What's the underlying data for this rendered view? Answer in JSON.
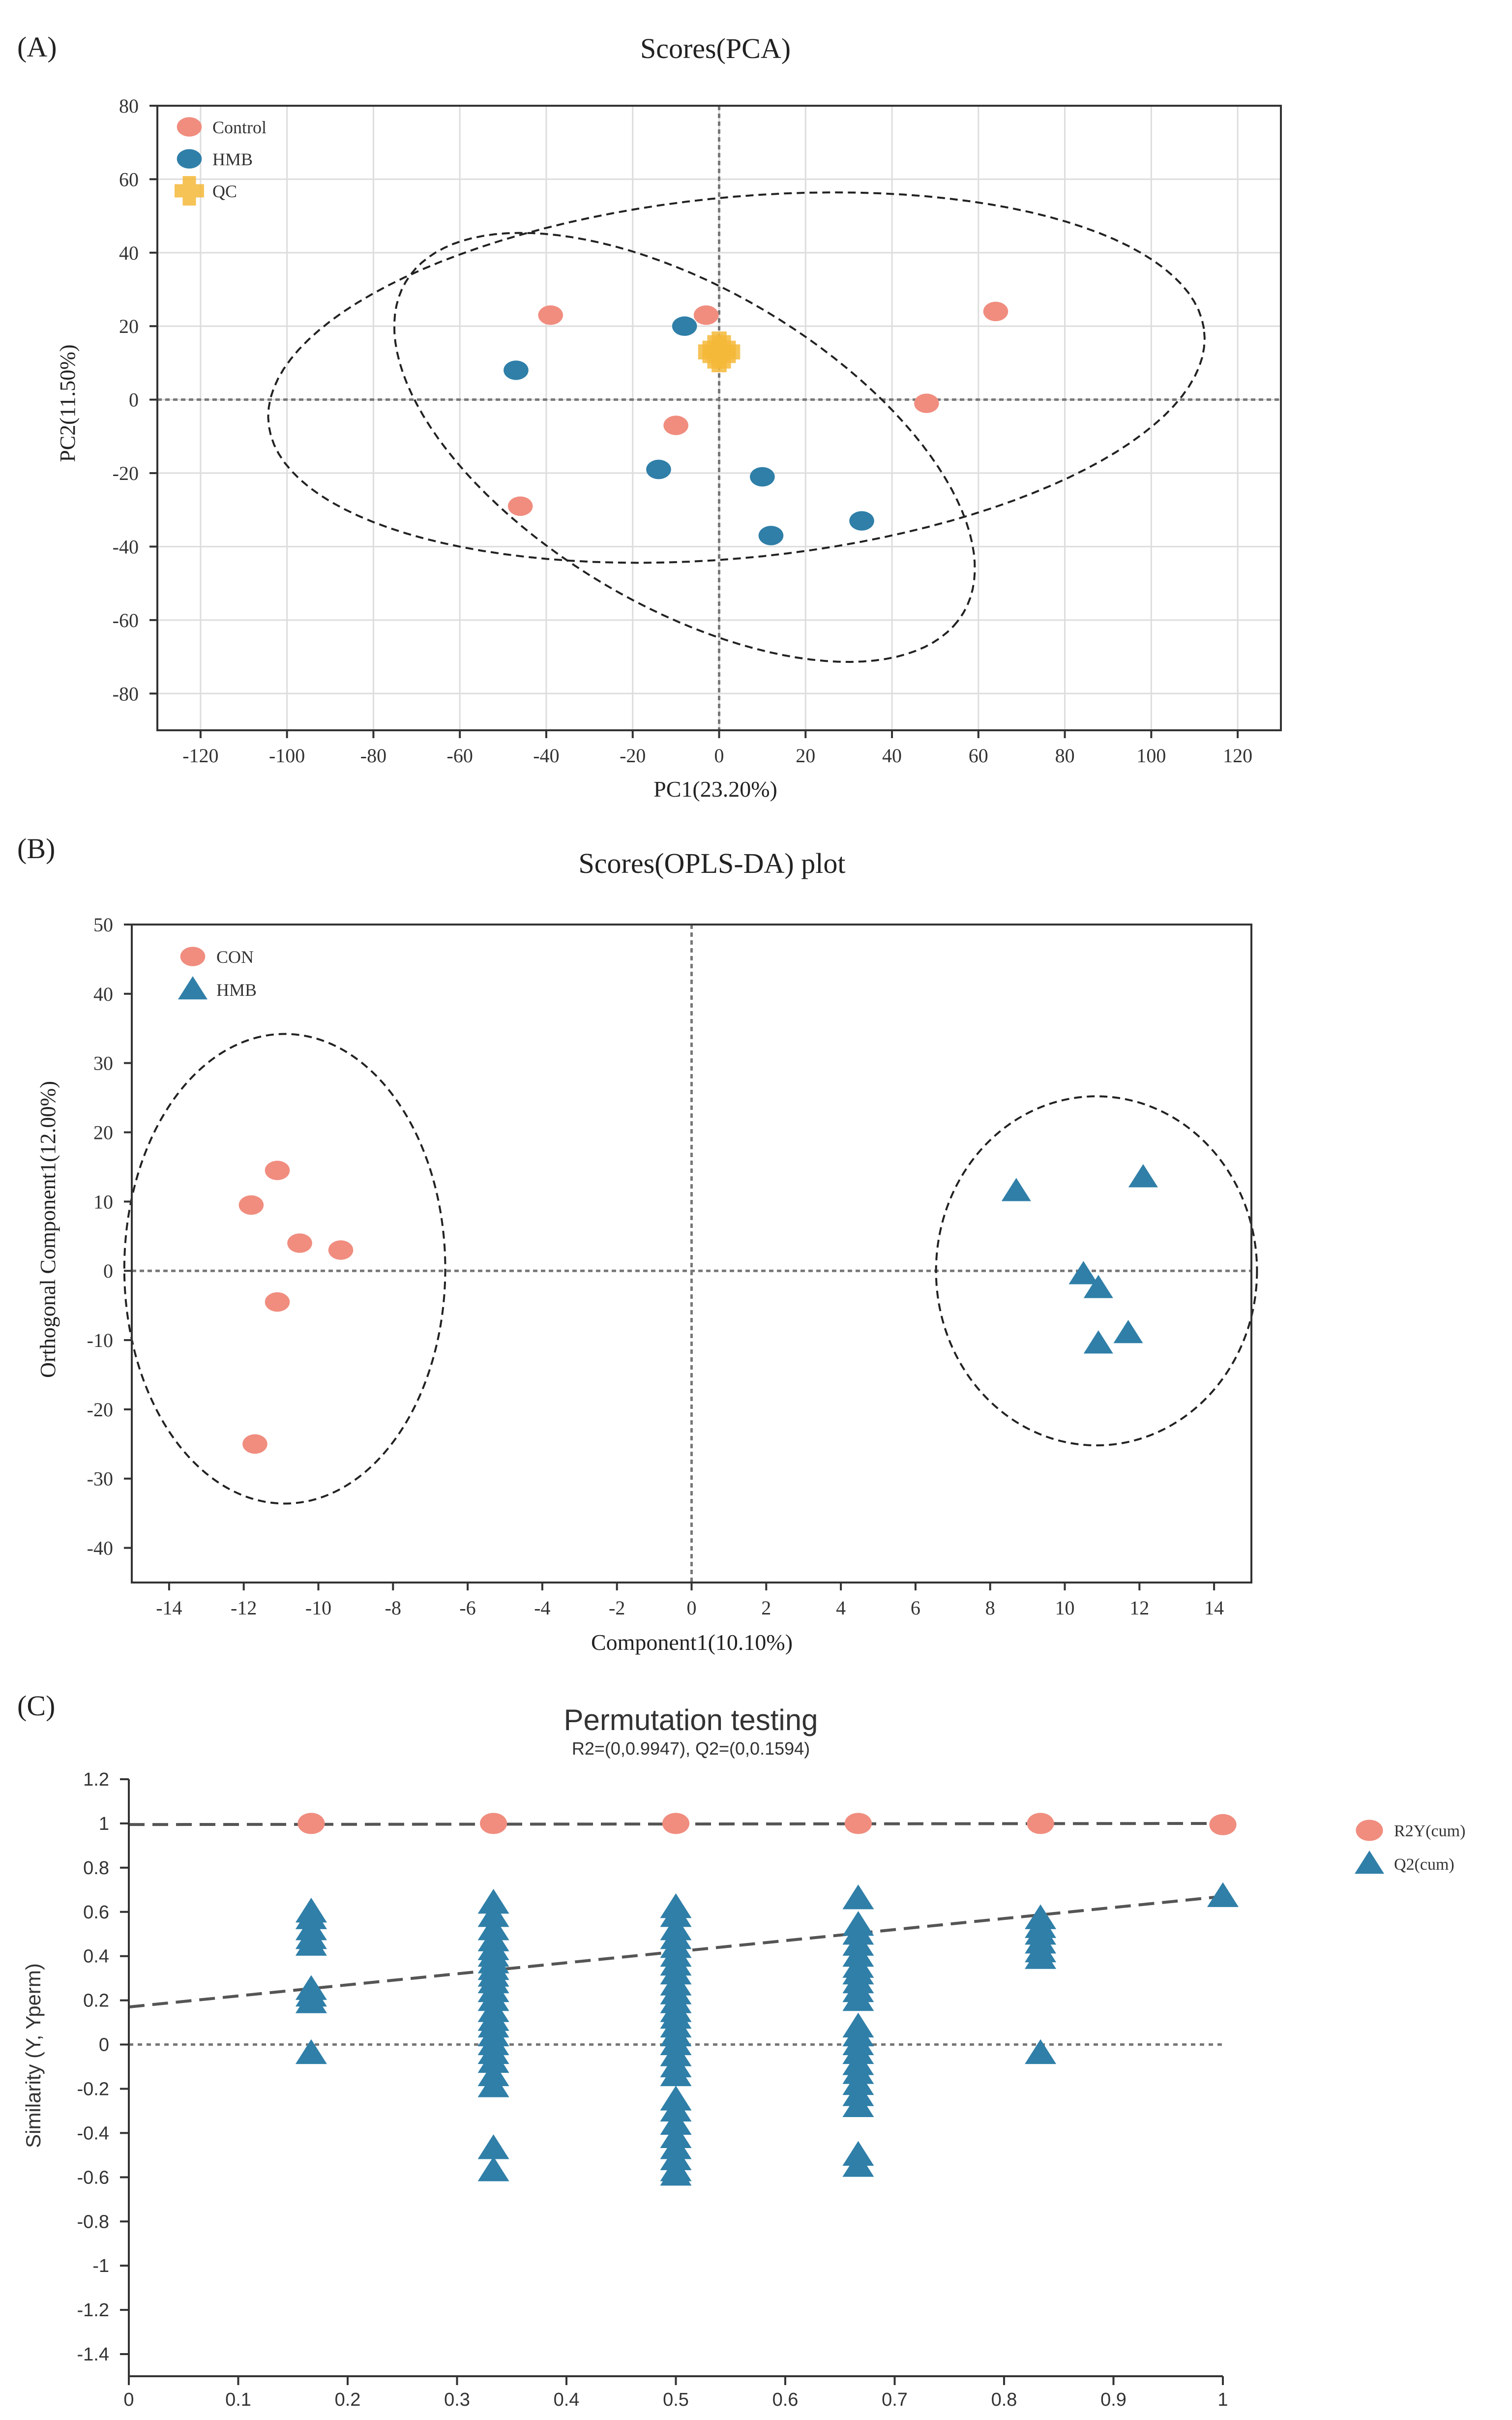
{
  "colors": {
    "control": "#f08d7f",
    "hmb": "#2f7fa8",
    "qc": "#f5b93a",
    "axis": "#333333",
    "grid": "#dddddd",
    "guide": "#777777",
    "ellipse": "#222222"
  },
  "chart_data": [
    {
      "panel_label": "(A)",
      "type": "scatter",
      "title": "Scores(PCA)",
      "xlabel": "PC1(23.20%)",
      "ylabel": "PC2(11.50%)",
      "xlim": [
        -130,
        130
      ],
      "ylim": [
        -90,
        80
      ],
      "xticks": [
        -120,
        -100,
        -80,
        -60,
        -40,
        -20,
        0,
        20,
        40,
        60,
        80,
        100,
        120
      ],
      "yticks": [
        -80,
        -60,
        -40,
        -20,
        0,
        20,
        40,
        60,
        80
      ],
      "grid": true,
      "legend_position": "top-left",
      "series": [
        {
          "name": "Control",
          "marker": "circle",
          "color": "#f08d7f",
          "points": [
            [
              -39,
              23
            ],
            [
              -3,
              23
            ],
            [
              -10,
              -7
            ],
            [
              -46,
              -29
            ],
            [
              48,
              -1
            ],
            [
              64,
              24
            ]
          ]
        },
        {
          "name": "HMB",
          "marker": "circle",
          "color": "#2f7fa8",
          "points": [
            [
              -47,
              8
            ],
            [
              -8,
              20
            ],
            [
              -14,
              -19
            ],
            [
              10,
              -21
            ],
            [
              12,
              -37
            ],
            [
              33,
              -33
            ]
          ]
        },
        {
          "name": "QC",
          "marker": "cross",
          "color": "#f5b93a",
          "points": [
            [
              -1,
              13
            ],
            [
              0,
              12
            ],
            [
              1,
              13
            ],
            [
              0,
              14
            ]
          ]
        }
      ],
      "ellipses": [
        {
          "group": "Control",
          "cx": 4,
          "cy": 6,
          "rx": 109,
          "ry": 49,
          "angle_deg": 7
        },
        {
          "group": "HMB",
          "cx": -8,
          "cy": -13,
          "rx": 79,
          "ry": 41,
          "angle_deg": -38
        }
      ]
    },
    {
      "panel_label": "(B)",
      "type": "scatter",
      "title": "Scores(OPLS-DA) plot",
      "xlabel": "Component1(10.10%)",
      "ylabel": "Orthogonal Component1(12.00%)",
      "xlim": [
        -15,
        15
      ],
      "ylim": [
        -45,
        50
      ],
      "xticks": [
        -14,
        -12,
        -10,
        -8,
        -6,
        -4,
        -2,
        0,
        2,
        4,
        6,
        8,
        10,
        12,
        14
      ],
      "yticks": [
        -40,
        -30,
        -20,
        -10,
        0,
        10,
        20,
        30,
        40,
        50
      ],
      "grid": false,
      "legend_position": "top-left",
      "series": [
        {
          "name": "CON",
          "marker": "circle",
          "color": "#f08d7f",
          "points": [
            [
              -11.8,
              9.5
            ],
            [
              -11.1,
              14.5
            ],
            [
              -10.5,
              4
            ],
            [
              -9.4,
              3
            ],
            [
              -11.1,
              -4.5
            ],
            [
              -11.7,
              -25
            ]
          ]
        },
        {
          "name": "HMB",
          "marker": "triangle",
          "color": "#2f7fa8",
          "points": [
            [
              8.7,
              11.5
            ],
            [
              12.1,
              13.5
            ],
            [
              10.5,
              -0.5
            ],
            [
              10.9,
              -2.5
            ],
            [
              11.7,
              -9
            ],
            [
              10.9,
              -10.5
            ]
          ]
        }
      ],
      "ellipses": [
        {
          "group": "CON",
          "cx": -10.9,
          "cy": 0.3,
          "rx": 4.3,
          "ry": 33.9,
          "angle_deg": 0
        },
        {
          "group": "HMB",
          "cx": 10.85,
          "cy": 0,
          "rx": 4.3,
          "ry": 25.2,
          "angle_deg": 0
        }
      ]
    },
    {
      "panel_label": "(C)",
      "type": "scatter",
      "title": "Permutation testing",
      "subtitle": "R2=(0,0.9947), Q2=(0,0.1594)",
      "xlabel": "",
      "ylabel": "Similarity (Y, Yperm)",
      "xlim": [
        0,
        1
      ],
      "ylim": [
        -1.5,
        1.2
      ],
      "xticks": [
        0,
        0.1,
        0.2,
        0.3,
        0.4,
        0.5,
        0.6,
        0.7,
        0.8,
        0.9,
        1
      ],
      "xticklabels": [
        "0",
        "0.1",
        "0.2",
        "0.3",
        "0.4",
        "0.5",
        "0.6",
        "0.7",
        "0.8",
        "0.9",
        "1"
      ],
      "yticks": [
        1.2,
        1,
        0.8,
        0.6,
        0.4,
        0.2,
        0,
        -0.2,
        -0.4,
        -0.6,
        -0.8,
        -1,
        -1.2,
        -1.4
      ],
      "yticklabels": [
        "1.2",
        "1",
        "0.8",
        "0.6",
        "0.4",
        "0.2",
        "0",
        "-0.2",
        "-0.4",
        "-0.6",
        "-0.8",
        "-1",
        "-1.2",
        "-1.4"
      ],
      "grid": false,
      "legend_position": "right",
      "series": [
        {
          "name": "R2Y(cum)",
          "marker": "circle",
          "color": "#f08d7f",
          "x": [
            0.1667,
            0.3333,
            0.5,
            0.6667,
            0.8333,
            1.0
          ],
          "values": [
            1,
            1,
            1,
            1,
            1,
            0.9947
          ]
        },
        {
          "name": "Q2(cum)",
          "marker": "triangle",
          "color": "#2f7fa8",
          "groups": [
            {
              "x": 0.1667,
              "values": [
                0.6,
                0.57,
                0.52,
                0.48,
                0.45,
                0.25,
                0.22,
                0.19,
                -0.04
              ]
            },
            {
              "x": 0.3333,
              "values": [
                0.64,
                0.58,
                0.52,
                0.47,
                0.43,
                0.4,
                0.37,
                0.34,
                0.31,
                0.28,
                0.24,
                0.2,
                0.15,
                0.11,
                0.08,
                0.04,
                0.0,
                -0.04,
                -0.08,
                -0.14,
                -0.19,
                -0.47,
                -0.57
              ]
            },
            {
              "x": 0.5,
              "values": [
                0.62,
                0.58,
                0.52,
                0.48,
                0.44,
                0.4,
                0.36,
                0.32,
                0.27,
                0.23,
                0.19,
                0.15,
                0.12,
                0.08,
                0.04,
                0.0,
                -0.05,
                -0.1,
                -0.14,
                -0.25,
                -0.3,
                -0.36,
                -0.42,
                -0.47,
                -0.52,
                -0.57,
                -0.59
              ]
            },
            {
              "x": 0.6667,
              "values": [
                0.66,
                0.54,
                0.5,
                0.45,
                0.4,
                0.35,
                0.32,
                0.28,
                0.24,
                0.2,
                0.08,
                0.04,
                0.0,
                -0.04,
                -0.09,
                -0.13,
                -0.18,
                -0.23,
                -0.28,
                -0.5,
                -0.55
              ]
            },
            {
              "x": 0.8333,
              "values": [
                0.57,
                0.53,
                0.5,
                0.46,
                0.42,
                0.39,
                -0.04
              ]
            },
            {
              "x": 1.0,
              "values": [
                0.67
              ]
            }
          ]
        }
      ],
      "regression_lines": [
        {
          "name": "R2Y(cum)",
          "x": [
            0,
            1
          ],
          "y": [
            0.995,
            1.0
          ]
        },
        {
          "name": "Q2(cum)",
          "x": [
            0,
            1
          ],
          "y": [
            0.17,
            0.67
          ]
        }
      ]
    }
  ]
}
